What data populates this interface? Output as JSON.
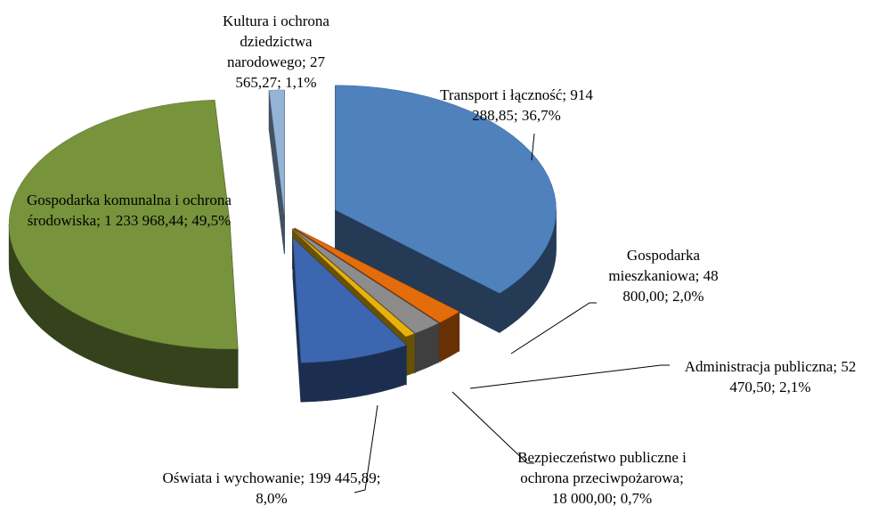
{
  "chart_data": {
    "type": "pie3d",
    "categories": [
      "Transport i łączność",
      "Gospodarka mieszkaniowa",
      "Administracja publiczna",
      "Bezpieczeństwo publiczne i ochrona przeciwpożarowa",
      "Oświata i wychowanie",
      "Gospodarka komunalna i ochrona środowiska",
      "Kultura i ochrona dziedzictwa narodowego"
    ],
    "values": [
      914288.85,
      48800,
      52470.5,
      18000,
      199445.89,
      1233968.44,
      27565.27
    ],
    "value_labels": [
      "914 288,85",
      "48 800,00",
      "52 470,50",
      "18 000,00",
      "199 445,89",
      "1 233 968,44",
      "27 565,27"
    ],
    "percents": [
      36.7,
      2.0,
      2.1,
      0.7,
      8.0,
      49.5,
      1.1
    ],
    "percent_labels": [
      "36,7%",
      "2,0%",
      "2,1%",
      "0,7%",
      "8,0%",
      "49,5%",
      "1,1%"
    ],
    "label_separator": "; ",
    "colors": [
      "#4f81bd",
      "#e46c0a",
      "#8c8c8c",
      "#e8b10c",
      "#3d66b0",
      "#77933c",
      "#95b3d7"
    ]
  }
}
